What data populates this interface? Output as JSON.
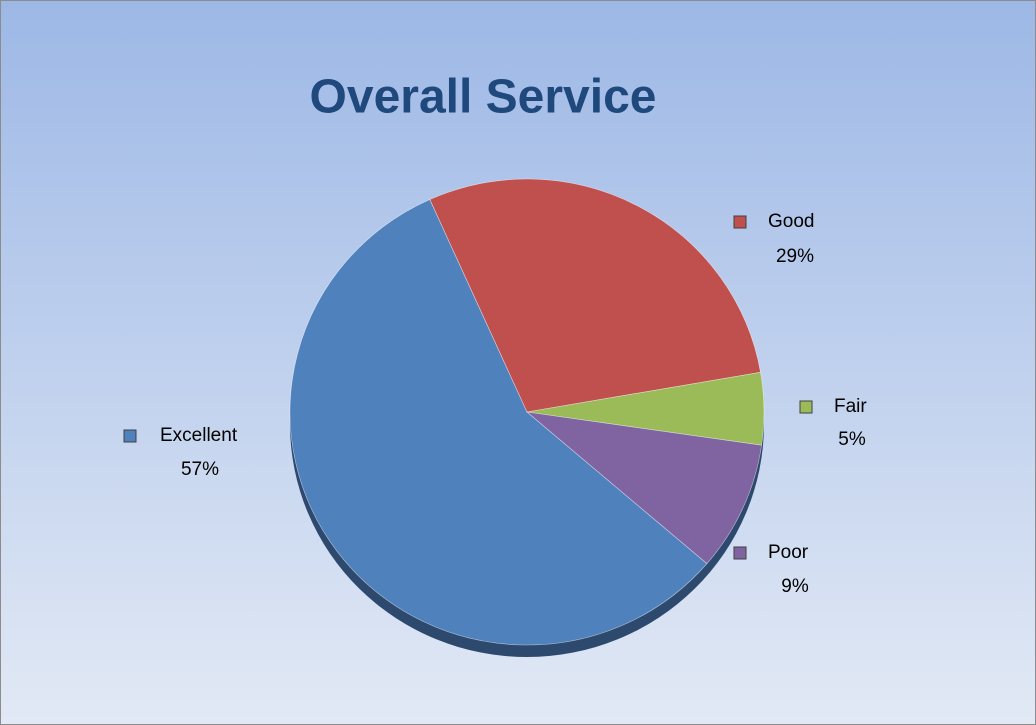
{
  "chart_data": {
    "type": "pie",
    "title": "Overall Service",
    "categories": [
      "Excellent",
      "Good",
      "Fair",
      "Poor"
    ],
    "values": [
      57,
      29,
      5,
      9
    ],
    "value_labels": [
      "57%",
      "29%",
      "5%",
      "9%"
    ],
    "colors": [
      "#4f81bd",
      "#c0504d",
      "#9bbb59",
      "#8064a2"
    ]
  }
}
